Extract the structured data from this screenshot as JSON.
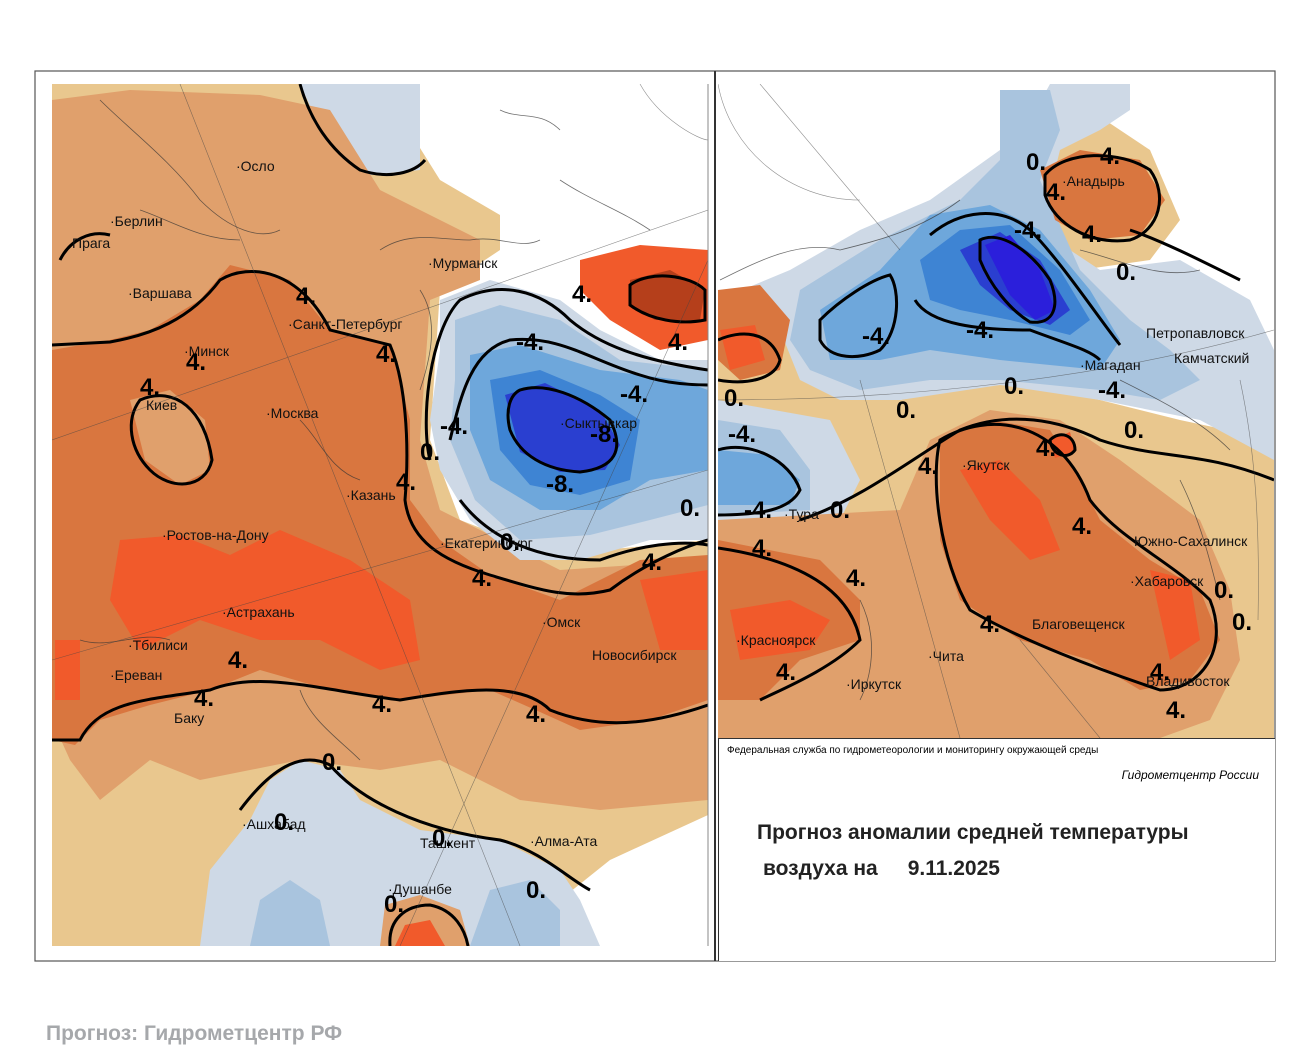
{
  "cities": [
    "Осло",
    "Берлин",
    "Прага",
    "Варшава",
    "Мурманск",
    "Санкт-Петербург",
    "Минск",
    "Киев",
    "Москва",
    "Сыктывкар",
    "Казань",
    "Ростов-на-Дону",
    "Екатеринбург",
    "Астрахань",
    "Омск",
    "Тбилиси",
    "Новосибирск",
    "Ереван",
    "Баку",
    "Ашхабад",
    "Ташкент",
    "Алма-Ата",
    "Душанбе",
    "Анадырь",
    "Петропавловск",
    "Камчатский",
    "Магадан",
    "Якутск",
    "Тура",
    "Южно-Сахалинск",
    "Хабаровск",
    "Красноярск",
    "Благовещенск",
    "Чита",
    "Иркутск",
    "Владивосток"
  ],
  "isolines": [
    "4.",
    "-4.",
    "-8.",
    "0."
  ],
  "panel": {
    "agency": "Федеральная служба по гидрометеорологии и мониторингу окружающей среды",
    "center": "Гидрометцентр России",
    "title_line1": "Прогноз аномалии средней температуры",
    "title_line2": "воздуха на",
    "date": "9.11.2025"
  },
  "footer": "Прогноз: Гидрометцентр РФ",
  "colors": {
    "warm_strong": "#f15a2b",
    "warm": "#d9763f",
    "warm_light": "#e0a06c",
    "neutral_warm": "#e9c78e",
    "neutral_cool": "#ced9e6",
    "cool_light": "#a9c4de",
    "cool": "#6ea7db",
    "cool_mid": "#3e84d3",
    "cool_strong": "#2a3fd0",
    "cool_deep": "#2b1fdb",
    "dark_red": "#b53f1b",
    "footer_text": "#a6a8ab"
  }
}
